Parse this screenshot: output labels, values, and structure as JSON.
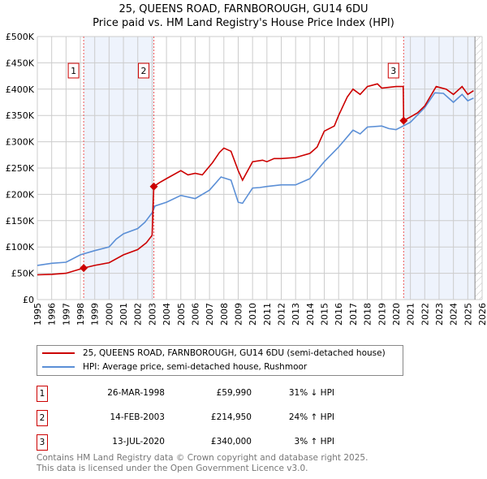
{
  "chart_data": {
    "type": "line",
    "title": "25, QUEENS ROAD, FARNBOROUGH, GU14 6DU",
    "subtitle": "Price paid vs. HM Land Registry's House Price Index (HPI)",
    "xlim": [
      1995,
      2026
    ],
    "ylim": [
      0,
      500000
    ],
    "x_ticks": [
      "1995",
      "1996",
      "1997",
      "1998",
      "1999",
      "2000",
      "2001",
      "2002",
      "2003",
      "2004",
      "2005",
      "2006",
      "2007",
      "2008",
      "2009",
      "2010",
      "2011",
      "2012",
      "2013",
      "2014",
      "2015",
      "2016",
      "2017",
      "2018",
      "2019",
      "2020",
      "2021",
      "2022",
      "2023",
      "2024",
      "2025",
      "2026"
    ],
    "y_ticks": [
      {
        "v": 0,
        "label": "£0"
      },
      {
        "v": 50000,
        "label": "£50K"
      },
      {
        "v": 100000,
        "label": "£100K"
      },
      {
        "v": 150000,
        "label": "£150K"
      },
      {
        "v": 200000,
        "label": "£200K"
      },
      {
        "v": 250000,
        "label": "£250K"
      },
      {
        "v": 300000,
        "label": "£300K"
      },
      {
        "v": 350000,
        "label": "£350K"
      },
      {
        "v": 400000,
        "label": "£400K"
      },
      {
        "v": 450000,
        "label": "£450K"
      },
      {
        "v": 500000,
        "label": "£500K"
      }
    ],
    "grid": true,
    "series": [
      {
        "name": "25, QUEENS ROAD, FARNBOROUGH, GU14 6DU (semi-detached house)",
        "color": "#cc0000",
        "x": [
          1995,
          1996,
          1997,
          1998.23,
          1999,
          2000,
          2001,
          2002,
          2002.6,
          2003.0,
          2003.12,
          2003.5,
          2004,
          2005,
          2005.5,
          2006,
          2006.5,
          2007.2,
          2007.7,
          2008,
          2008.5,
          2009,
          2009.3,
          2010,
          2010.7,
          2011,
          2011.5,
          2012,
          2013,
          2014,
          2014.5,
          2015,
          2015.7,
          2016,
          2016.6,
          2017,
          2017.5,
          2018,
          2018.7,
          2019,
          2020,
          2020.5,
          2020.53,
          2021,
          2021.5,
          2022,
          2022.8,
          2023.5,
          2024,
          2024.6,
          2025,
          2025.4
        ],
        "y": [
          47000,
          48000,
          50000,
          59990,
          65000,
          70000,
          85000,
          95000,
          108000,
          122000,
          214950,
          222000,
          230000,
          245000,
          237000,
          240000,
          237000,
          260000,
          280000,
          288000,
          282000,
          245000,
          227000,
          262000,
          265000,
          262000,
          268000,
          268000,
          270000,
          278000,
          290000,
          320000,
          330000,
          350000,
          385000,
          400000,
          390000,
          405000,
          410000,
          402000,
          405000,
          405000,
          340000,
          347000,
          355000,
          368000,
          405000,
          400000,
          390000,
          405000,
          390000,
          397000
        ]
      },
      {
        "name": "HPI: Average price, semi-detached house, Rushmoor",
        "color": "#5b8fd6",
        "x": [
          1995,
          1996,
          1997,
          1998,
          1999,
          2000,
          2000.5,
          2001,
          2002,
          2002.5,
          2003,
          2003.2,
          2004,
          2005,
          2006,
          2007,
          2007.8,
          2008.5,
          2009,
          2009.3,
          2010,
          2010.5,
          2011,
          2012,
          2013,
          2014,
          2015,
          2016,
          2017,
          2017.5,
          2018,
          2019,
          2019.5,
          2020,
          2020.5,
          2021,
          2022,
          2022.7,
          2023.3,
          2024,
          2024.6,
          2025,
          2025.4
        ],
        "y": [
          65000,
          69000,
          71000,
          85000,
          93000,
          100000,
          115000,
          125000,
          135000,
          147000,
          165000,
          178000,
          185000,
          198000,
          192000,
          208000,
          233000,
          227000,
          185000,
          183000,
          212000,
          213000,
          215000,
          218000,
          218000,
          230000,
          262000,
          290000,
          322000,
          315000,
          328000,
          330000,
          325000,
          323000,
          330000,
          337000,
          365000,
          393000,
          392000,
          375000,
          390000,
          378000,
          383000
        ]
      }
    ],
    "sales": [
      {
        "num": "1",
        "x": 1998.23,
        "y": 59990,
        "date": "26-MAR-1998",
        "price": "£59,990",
        "hpi": "31% ↓ HPI"
      },
      {
        "num": "2",
        "x": 2003.12,
        "y": 214950,
        "date": "14-FEB-2003",
        "price": "£214,950",
        "hpi": "24% ↑ HPI"
      },
      {
        "num": "3",
        "x": 2020.53,
        "y": 340000,
        "date": "13-JUL-2020",
        "price": "£340,000",
        "hpi": "3% ↑ HPI"
      }
    ],
    "shaded": [
      [
        1998.23,
        2003.12
      ],
      [
        2020.53,
        2025.5
      ]
    ],
    "forecast_start": 2025.5
  },
  "footer": {
    "line1": "Contains HM Land Registry data © Crown copyright and database right 2025.",
    "line2": "This data is licensed under the Open Government Licence v3.0."
  }
}
